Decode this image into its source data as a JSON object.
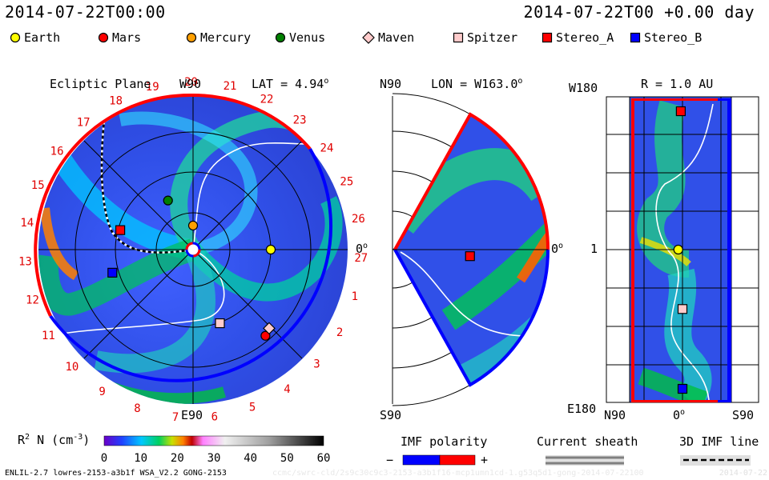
{
  "header": {
    "left": "2014-07-22T00:00",
    "right": "2014-07-22T00 +0.00 day"
  },
  "legend": [
    {
      "label": "Earth",
      "shape": "circle",
      "color": "#ffff00"
    },
    {
      "label": "Mars",
      "shape": "circle",
      "color": "#ff0000"
    },
    {
      "label": "Mercury",
      "shape": "circle",
      "color": "#ffa000"
    },
    {
      "label": "Venus",
      "shape": "circle",
      "color": "#008000"
    },
    {
      "label": "Maven",
      "shape": "diamond",
      "color": "#ffcccc"
    },
    {
      "label": "Spitzer",
      "shape": "square",
      "color": "#ffcccc"
    },
    {
      "label": "Stereo_A",
      "shape": "square",
      "color": "#ff0000"
    },
    {
      "label": "Stereo_B",
      "shape": "square",
      "color": "#0000ff"
    }
  ],
  "panels": {
    "ecliptic": {
      "title": "Ecliptic Plane",
      "top_label": "W90",
      "bottom_label": "E90",
      "lat_label": "LAT = 4.94",
      "lat_degree": "o",
      "zero_label": "0",
      "zero_degree": "o",
      "sector_labels": [
        "19",
        "20",
        "21",
        "22",
        "23",
        "24",
        "25",
        "26",
        "27",
        "1",
        "2",
        "3",
        "4",
        "5",
        "6",
        "7",
        "8",
        "9",
        "10",
        "11",
        "12",
        "13",
        "14",
        "15",
        "16",
        "17",
        "18"
      ]
    },
    "meridional": {
      "top_label": "N90",
      "bottom_label": "S90",
      "lon_label": "LON = W163.0",
      "lon_degree": "o",
      "zero_label": "0",
      "zero_degree": "o"
    },
    "rmap": {
      "title": "R = 1.0 AU",
      "top_left": "W180",
      "bottom_left": "E180",
      "mid_left": "1",
      "bottom_axis": [
        "N90",
        "0",
        "S90"
      ],
      "zero_degree": "o"
    }
  },
  "colorbar": {
    "label": "R",
    "label_sup": "2",
    "label_rest": " N (cm",
    "label_exp": "-3",
    "label_close": ")",
    "ticks": [
      "0",
      "10",
      "20",
      "30",
      "40",
      "50",
      "60"
    ],
    "min": 0,
    "max": 60
  },
  "imf": {
    "title": "IMF polarity",
    "minus": "−",
    "plus": "+",
    "neg_color": "#0000ff",
    "pos_color": "#ff0000"
  },
  "sheath": {
    "title": "Current sheath"
  },
  "imf3d": {
    "title": "3D IMF line"
  },
  "footer": {
    "left": "ENLIL-2.7 lowres-2153-a3b1f WSA_V2.2 GONG-2153",
    "right": "ccmc/swrc-cld/2s9c30c9c3-2153-a3b1f16-mcp1umn1cd-1.g53q5d1-gong-2014-07-22100",
    "date": "2014-07-22"
  },
  "chart_data": [
    {
      "type": "heatmap",
      "title": "Ecliptic Plane",
      "quantity": "R^2 N (cm^-3)",
      "zlim": [
        0,
        60
      ],
      "bodies": [
        {
          "name": "Earth",
          "r_au": 1.0,
          "angle_deg": 0
        },
        {
          "name": "Mars",
          "r_au": 1.45,
          "angle_deg": -50
        },
        {
          "name": "Mercury",
          "r_au": 0.31,
          "angle_deg": 90
        },
        {
          "name": "Venus",
          "r_au": 0.71,
          "angle_deg": 117
        },
        {
          "name": "Maven",
          "r_au": 1.41,
          "angle_deg": -46
        },
        {
          "name": "Spitzer",
          "r_au": 1.01,
          "angle_deg": -70
        },
        {
          "name": "Stereo_A",
          "r_au": 0.97,
          "angle_deg": 165
        },
        {
          "name": "Stereo_B",
          "r_au": 1.08,
          "angle_deg": -164
        }
      ]
    },
    {
      "type": "heatmap",
      "title": "LON = W163.0",
      "bodies": [
        {
          "name": "Stereo_A",
          "r_au": 0.97,
          "angle_deg": -5
        }
      ]
    },
    {
      "type": "heatmap",
      "title": "R = 1.0 AU",
      "bodies": [
        {
          "name": "Stereo_A",
          "lat_deg": 2,
          "lon_deg": 163
        },
        {
          "name": "Earth",
          "lat_deg": 5,
          "lon_deg": 0
        },
        {
          "name": "Spitzer",
          "lat_deg": 0,
          "lon_deg": -70
        },
        {
          "name": "Stereo_B",
          "lat_deg": 0,
          "lon_deg": -164
        }
      ]
    }
  ]
}
